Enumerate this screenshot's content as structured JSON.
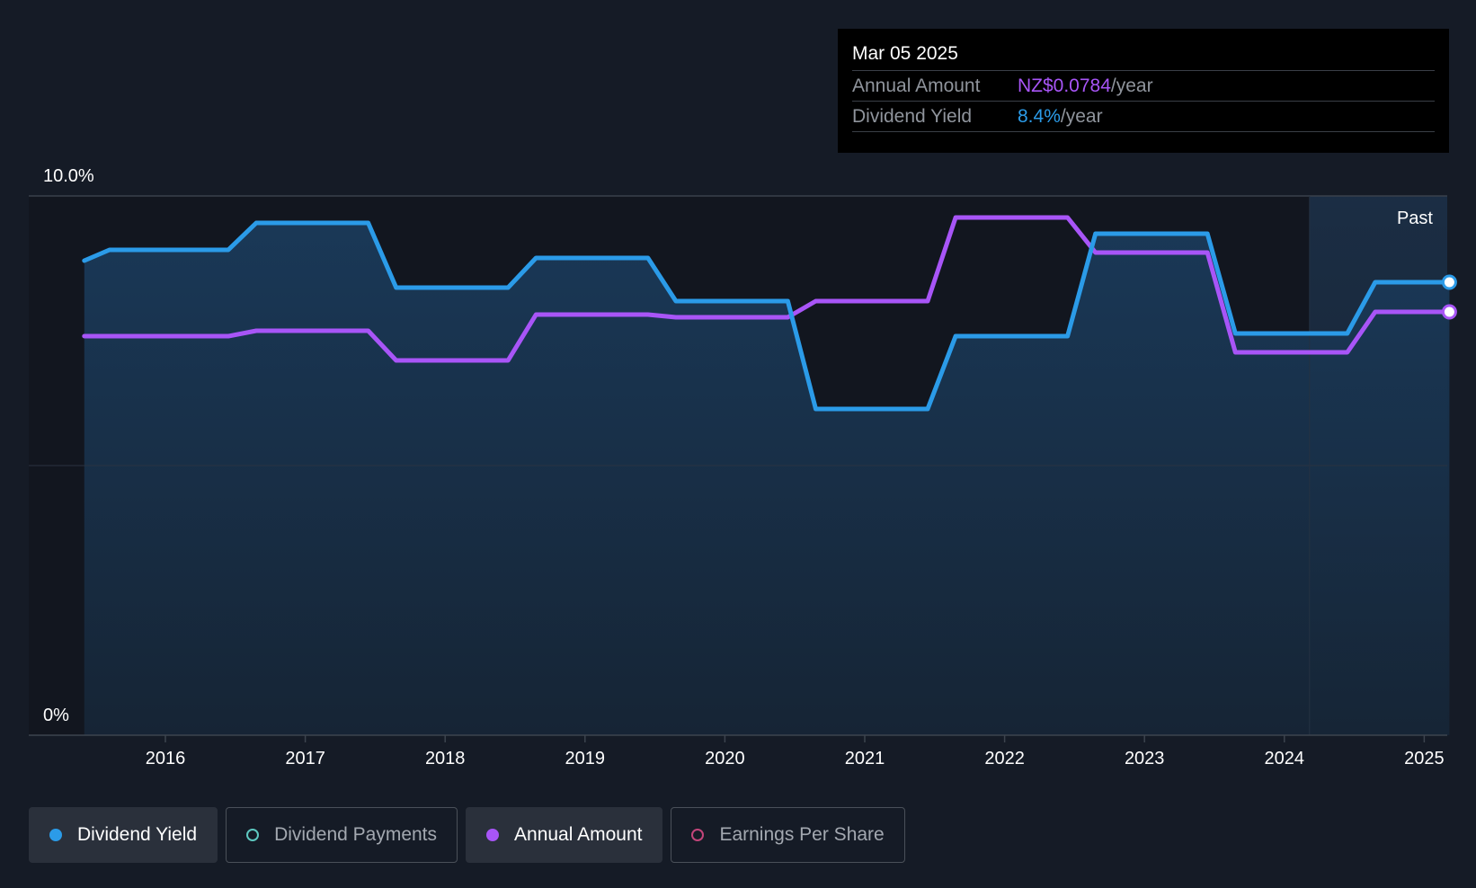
{
  "chart_data": {
    "type": "line",
    "y_axis": {
      "min": 0,
      "max": 10,
      "tick_labels": [
        "10.0%",
        "0%"
      ]
    },
    "x_axis": {
      "tick_labels": [
        "2016",
        "2017",
        "2018",
        "2019",
        "2020",
        "2021",
        "2022",
        "2023",
        "2024",
        "2025"
      ]
    },
    "past_label": "Past",
    "past_region_start": 2024.18,
    "grid": true,
    "series": [
      {
        "name": "Dividend Yield",
        "color": "#2b9be8",
        "filled": true,
        "points": [
          [
            2015.42,
            8.8
          ],
          [
            2015.6,
            9.0
          ],
          [
            2016.45,
            9.0
          ],
          [
            2016.65,
            9.5
          ],
          [
            2017.45,
            9.5
          ],
          [
            2017.65,
            8.3
          ],
          [
            2018.45,
            8.3
          ],
          [
            2018.65,
            8.85
          ],
          [
            2019.45,
            8.85
          ],
          [
            2019.65,
            8.05
          ],
          [
            2020.45,
            8.05
          ],
          [
            2020.65,
            6.05
          ],
          [
            2021.45,
            6.05
          ],
          [
            2021.65,
            7.4
          ],
          [
            2022.45,
            7.4
          ],
          [
            2022.65,
            9.3
          ],
          [
            2023.45,
            9.3
          ],
          [
            2023.65,
            7.45
          ],
          [
            2024.45,
            7.45
          ],
          [
            2024.65,
            8.4
          ],
          [
            2025.18,
            8.4
          ]
        ]
      },
      {
        "name": "Annual Amount",
        "color": "#a855f7",
        "filled": false,
        "points": [
          [
            2015.42,
            7.4
          ],
          [
            2016.45,
            7.4
          ],
          [
            2016.65,
            7.5
          ],
          [
            2017.45,
            7.5
          ],
          [
            2017.65,
            6.95
          ],
          [
            2018.45,
            6.95
          ],
          [
            2018.65,
            7.8
          ],
          [
            2019.45,
            7.8
          ],
          [
            2019.65,
            7.75
          ],
          [
            2020.45,
            7.75
          ],
          [
            2020.65,
            8.05
          ],
          [
            2021.45,
            8.05
          ],
          [
            2021.65,
            9.6
          ],
          [
            2022.45,
            9.6
          ],
          [
            2022.65,
            8.95
          ],
          [
            2023.45,
            8.95
          ],
          [
            2023.65,
            7.1
          ],
          [
            2024.45,
            7.1
          ],
          [
            2024.65,
            7.85
          ],
          [
            2025.18,
            7.85
          ]
        ]
      }
    ]
  },
  "tooltip": {
    "date": "Mar 05 2025",
    "annual_amount_label": "Annual Amount",
    "annual_amount_value": "NZ$0.0784",
    "annual_amount_unit": "/year",
    "dividend_yield_label": "Dividend Yield",
    "dividend_yield_value": "8.4%",
    "dividend_yield_unit": "/year"
  },
  "legend": [
    {
      "label": "Dividend Yield",
      "color": "#2b9be8",
      "active": true,
      "dot": "filled"
    },
    {
      "label": "Dividend Payments",
      "color": "#5ec8c0",
      "active": false,
      "dot": "hollow"
    },
    {
      "label": "Annual Amount",
      "color": "#a855f7",
      "active": true,
      "dot": "filled"
    },
    {
      "label": "Earnings Per Share",
      "color": "#c2457a",
      "active": false,
      "dot": "hollow"
    }
  ]
}
